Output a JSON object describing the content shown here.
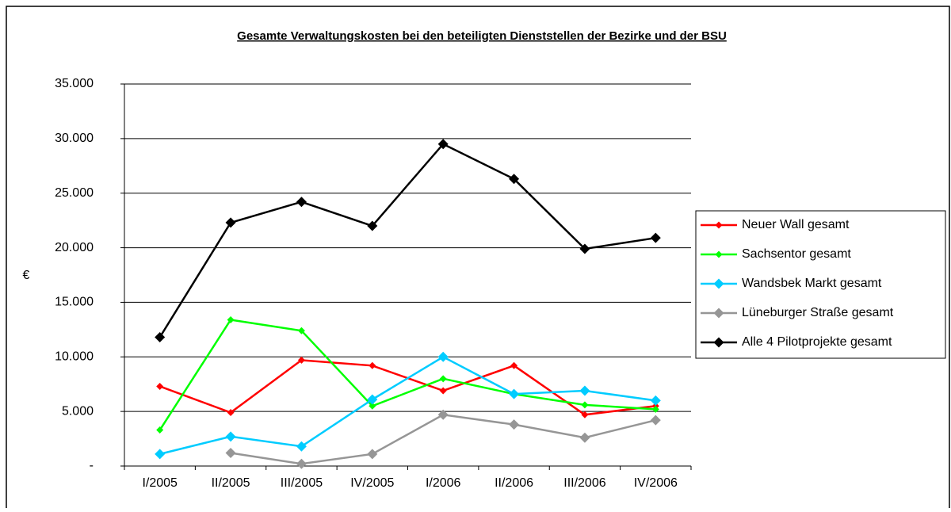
{
  "chart_data": {
    "type": "line",
    "title": "Gesamte Verwaltungskosten bei den beteiligten Dienststellen der Bezirke und der BSU",
    "y_label": "€",
    "categories": [
      "I/2005",
      "II/2005",
      "III/2005",
      "IV/2005",
      "I/2006",
      "II/2006",
      "III/2006",
      "IV/2006"
    ],
    "series": [
      {
        "name": "Neuer Wall gesamt",
        "color": "#ff0000",
        "values": [
          7300,
          4900,
          9700,
          9200,
          6900,
          9200,
          4700,
          5500
        ]
      },
      {
        "name": "Sachsentor gesamt",
        "color": "#00ff00",
        "values": [
          3300,
          13400,
          12400,
          5500,
          8000,
          6600,
          5600,
          5200
        ]
      },
      {
        "name": "Wandsbek Markt gesamt",
        "color": "#00ccff",
        "values": [
          1100,
          2700,
          1800,
          6100,
          10000,
          6600,
          6900,
          6000
        ]
      },
      {
        "name": "Lüneburger Straße gesamt",
        "color": "#969696",
        "values": [
          null,
          1200,
          200,
          1100,
          4700,
          3800,
          2600,
          4200
        ]
      },
      {
        "name": "Alle 4 Pilotprojekte  gesamt",
        "color": "#000000",
        "values": [
          11800,
          22300,
          24200,
          22000,
          29500,
          26300,
          19900,
          20900
        ]
      }
    ],
    "ylim": [
      0,
      35000
    ],
    "yticks": [
      {
        "value": 0,
        "label": "-"
      },
      {
        "value": 5000,
        "label": "5.000"
      },
      {
        "value": 10000,
        "label": "10.000"
      },
      {
        "value": 15000,
        "label": "15.000"
      },
      {
        "value": 20000,
        "label": "20.000"
      },
      {
        "value": 25000,
        "label": "25.000"
      },
      {
        "value": 30000,
        "label": "30.000"
      },
      {
        "value": 35000,
        "label": "35.000"
      }
    ],
    "grid": true,
    "legend": "right"
  }
}
